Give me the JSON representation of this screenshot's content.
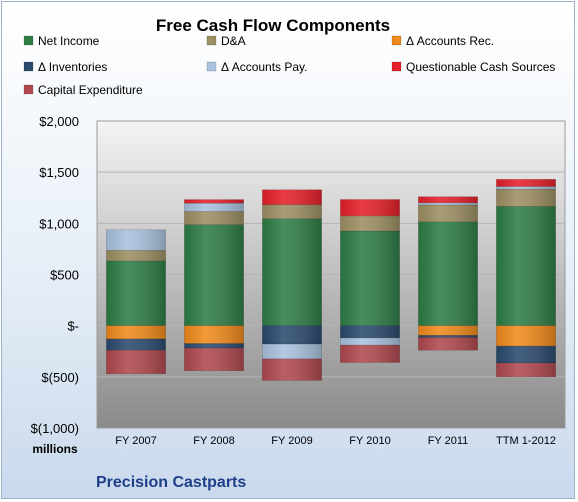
{
  "chart_data": {
    "type": "bar",
    "stacked": true,
    "title": "Free Cash Flow Components",
    "ylabel": "millions",
    "footer": "Precision Castparts",
    "ylim": [
      -1000,
      2000
    ],
    "y_ticks": [
      2000,
      1500,
      1000,
      500,
      0,
      -500,
      -1000
    ],
    "y_tick_labels": [
      "$2,000",
      "$1,500",
      "$1,000",
      "$500",
      "$-",
      "$(500)",
      "$(1,000)"
    ],
    "grid": true,
    "legend_position": "top",
    "categories": [
      "FY 2007",
      "FY 2008",
      "FY 2009",
      "FY 2010",
      "FY 2011",
      "TTM 1-2012"
    ],
    "series": [
      {
        "name": "Net Income",
        "color": "#2e7d46",
        "values": [
          633,
          987,
          1045,
          925,
          1015,
          1165
        ]
      },
      {
        "name": "D&A",
        "color": "#9c8f62",
        "values": [
          104,
          130,
          138,
          148,
          165,
          170
        ]
      },
      {
        "name": "Δ Accounts Rec.",
        "color": "#f08a1c",
        "values": [
          -130,
          -175,
          0,
          0,
          -95,
          -200
        ]
      },
      {
        "name": "Δ Inventories",
        "color": "#2b4a6e",
        "values": [
          -110,
          -45,
          -180,
          -120,
          -20,
          -165
        ]
      },
      {
        "name": "Δ Accounts Pay.",
        "color": "#a9c2de",
        "values": [
          200,
          80,
          -145,
          -70,
          20,
          25
        ]
      },
      {
        "name": "Questionable Cash Sources",
        "color": "#e5202a",
        "values": [
          0,
          35,
          145,
          160,
          60,
          70
        ]
      },
      {
        "name": "Capital Expenditure",
        "color": "#b0494f",
        "values": [
          -230,
          -220,
          -210,
          -170,
          -125,
          -135
        ]
      }
    ]
  }
}
